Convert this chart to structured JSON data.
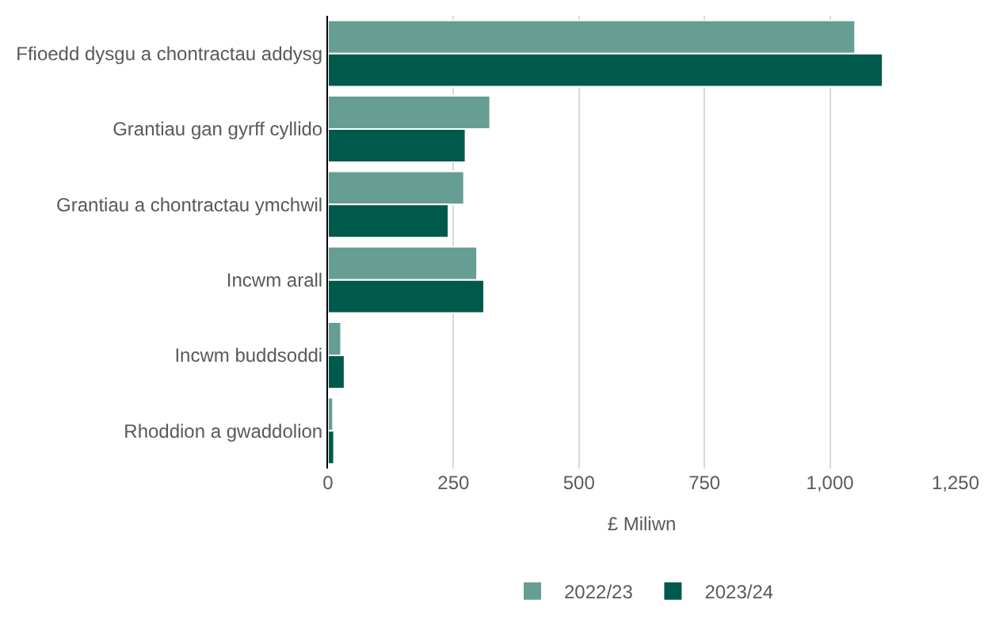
{
  "chart_data": {
    "type": "bar",
    "orientation": "horizontal",
    "xlabel": "£ Miliwn",
    "categories": [
      "Ffioedd dysgu a chontractau addysg",
      "Grantiau gan gyrff cyllido",
      "Grantiau a chontractau ymchwil",
      "Incwm arall",
      "Incwm buddsoddi",
      "Rhoddion a gwaddolion"
    ],
    "series": [
      {
        "name": "2022/23",
        "color": "#669e94",
        "values": [
          1050,
          323,
          271,
          297,
          26,
          10
        ]
      },
      {
        "name": "2023/24",
        "color": "#005a4c",
        "values": [
          1105,
          274,
          240,
          311,
          33,
          12
        ]
      }
    ],
    "xlim": [
      0,
      1250
    ],
    "xticks": [
      0,
      250,
      500,
      750,
      {
        "value": 1000,
        "label": "1,000"
      },
      {
        "value": 1250,
        "label": "1,250"
      }
    ],
    "grid": "x",
    "legend": "bottom"
  }
}
